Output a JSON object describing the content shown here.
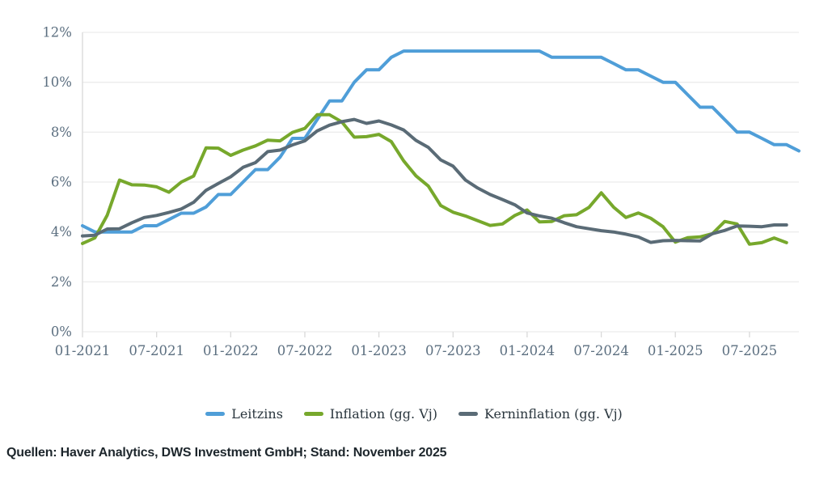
{
  "chart_data": {
    "type": "line",
    "title": "",
    "xlabel": "",
    "ylabel": "",
    "frequency": "monthly",
    "x_start": "01-2021",
    "x_count": 59,
    "ylim": [
      0,
      12
    ],
    "grid": "horizontal",
    "legend_position": "bottom",
    "y_ticks": [
      {
        "value": 0,
        "label": "0%"
      },
      {
        "value": 2,
        "label": "2%"
      },
      {
        "value": 4,
        "label": "4%"
      },
      {
        "value": 6,
        "label": "6%"
      },
      {
        "value": 8,
        "label": "8%"
      },
      {
        "value": 10,
        "label": "10%"
      },
      {
        "value": 12,
        "label": "12%"
      }
    ],
    "x_ticks": [
      {
        "index": 0,
        "label": "01-2021"
      },
      {
        "index": 6,
        "label": "07-2021"
      },
      {
        "index": 12,
        "label": "01-2022"
      },
      {
        "index": 18,
        "label": "07-2022"
      },
      {
        "index": 24,
        "label": "01-2023"
      },
      {
        "index": 30,
        "label": "07-2023"
      },
      {
        "index": 36,
        "label": "01-2024"
      },
      {
        "index": 42,
        "label": "07-2024"
      },
      {
        "index": 48,
        "label": "01-2025"
      },
      {
        "index": 54,
        "label": "07-2025"
      }
    ],
    "series": [
      {
        "name": "Leitzins",
        "color": "#4f9ed8",
        "values": [
          4.25,
          4.0,
          4.0,
          4.0,
          4.0,
          4.25,
          4.25,
          4.5,
          4.75,
          4.75,
          5.0,
          5.5,
          5.5,
          6.0,
          6.5,
          6.5,
          7.0,
          7.75,
          7.75,
          8.5,
          9.25,
          9.25,
          10.0,
          10.5,
          10.5,
          11.0,
          11.25,
          11.25,
          11.25,
          11.25,
          11.25,
          11.25,
          11.25,
          11.25,
          11.25,
          11.25,
          11.25,
          11.25,
          11.0,
          11.0,
          11.0,
          11.0,
          11.0,
          10.75,
          10.5,
          10.5,
          10.25,
          10.0,
          10.0,
          9.5,
          9.0,
          9.0,
          8.5,
          8.0,
          8.0,
          7.75,
          7.5,
          7.5,
          7.25
        ]
      },
      {
        "name": "Inflation (gg. Vj)",
        "color": "#77a82c",
        "values": [
          3.54,
          3.76,
          4.67,
          6.08,
          5.89,
          5.88,
          5.81,
          5.59,
          6.0,
          6.24,
          7.37,
          7.36,
          7.07,
          7.28,
          7.45,
          7.68,
          7.65,
          7.99,
          8.15,
          8.7,
          8.7,
          8.41,
          7.8,
          7.82,
          7.91,
          7.62,
          6.85,
          6.25,
          5.84,
          5.06,
          4.79,
          4.64,
          4.45,
          4.26,
          4.32,
          4.66,
          4.88,
          4.4,
          4.42,
          4.65,
          4.69,
          4.98,
          5.57,
          4.99,
          4.58,
          4.76,
          4.55,
          4.21,
          3.59,
          3.77,
          3.8,
          3.93,
          4.42,
          4.32,
          3.51,
          3.57,
          3.76,
          3.57
        ]
      },
      {
        "name": "Kerninflation (gg. Vj)",
        "color": "#5a6b76",
        "values": [
          3.84,
          3.87,
          4.12,
          4.13,
          4.37,
          4.58,
          4.66,
          4.78,
          4.92,
          5.19,
          5.67,
          5.94,
          6.21,
          6.59,
          6.78,
          7.22,
          7.28,
          7.49,
          7.65,
          8.05,
          8.28,
          8.42,
          8.51,
          8.35,
          8.45,
          8.29,
          8.09,
          7.67,
          7.39,
          6.89,
          6.64,
          6.08,
          5.76,
          5.5,
          5.3,
          5.09,
          4.76,
          4.64,
          4.55,
          4.37,
          4.21,
          4.13,
          4.05,
          4.0,
          3.91,
          3.8,
          3.58,
          3.65,
          3.66,
          3.65,
          3.64,
          3.93,
          4.06,
          4.24,
          4.23,
          4.21,
          4.28,
          4.28
        ]
      }
    ],
    "style": {
      "grid_color": "#ececec",
      "axis_color": "#d9d9d9",
      "tick_label_color": "#5c6f80",
      "line_width": 4
    }
  },
  "footer": {
    "source_text": "Quellen: Haver Analytics, DWS Investment GmbH; Stand: November 2025"
  }
}
